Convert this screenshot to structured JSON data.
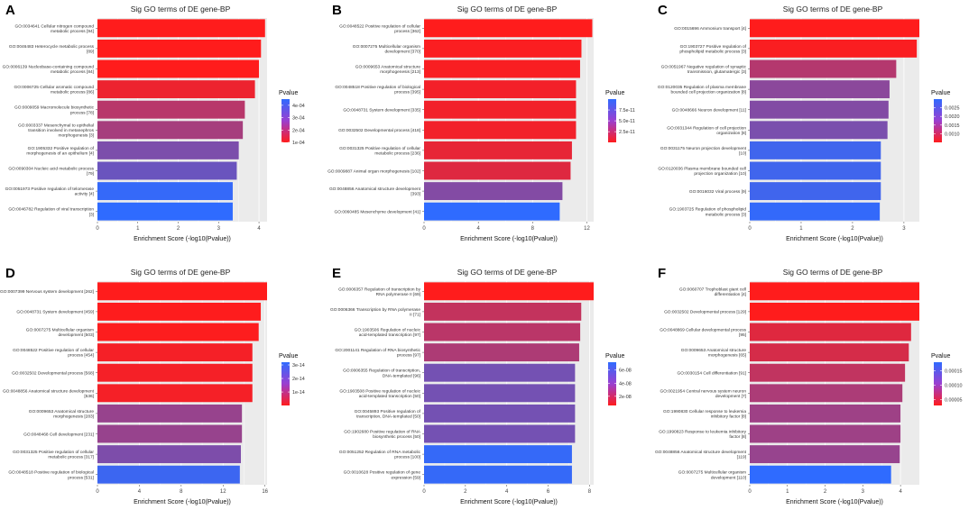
{
  "figure_title": "Sig GO terms of DE gene-BP panels A-F",
  "chart_data": [
    {
      "panel": "A",
      "type": "bar",
      "orientation": "horizontal",
      "title": "Sig GO terms of DE gene-BP",
      "xlabel": "Enrichment Score (-log10(Pvalue))",
      "xlim": [
        0,
        4.2
      ],
      "xticks": [
        0,
        1,
        2,
        3,
        4
      ],
      "categories": [
        "GO:0034641 Cellular nitrogen compound metabolic process [94]",
        "GO:0046483 Heterocycle metabolic process [89]",
        "GO:0006139 Nucleobase-containing compound metabolic process [84]",
        "GO:0006725 Cellular aromatic compound metabolic process [86]",
        "GO:0009059 Macromolecule biosynthetic process [78]",
        "GO:0003337 Mesenchymal to epithelial transition involved in metanephros morphogenesis [3]",
        "GO:1905332 Positive regulation of morphogenesis of an epithelium [4]",
        "GO:0090304 Nucleic acid metabolic process [79]",
        "GO:0051973 Positive regulation of telomerase activity [4]",
        "GO:0046782 Regulation of viral transcription [3]"
      ],
      "values": [
        4.15,
        4.05,
        4.0,
        3.9,
        3.65,
        3.6,
        3.5,
        3.45,
        3.35,
        3.35
      ],
      "pvalues": [
        7e-05,
        9e-05,
        0.0001,
        0.00013,
        0.00022,
        0.00025,
        0.00032,
        0.00035,
        0.00044,
        0.00045
      ],
      "legend": {
        "title": "Pvalue",
        "range": [
          0.0001,
          0.00045
        ],
        "ticks": [
          "4e-04",
          "3e-04",
          "2e-04",
          "1e-04"
        ],
        "tick_values": [
          0.0004,
          0.0003,
          0.0002,
          0.0001
        ]
      }
    },
    {
      "panel": "B",
      "type": "bar",
      "orientation": "horizontal",
      "title": "Sig GO terms of DE gene-BP",
      "xlabel": "Enrichment Score (-log10(Pvalue))",
      "xlim": [
        0,
        12.5
      ],
      "xticks": [
        0,
        4,
        8,
        12
      ],
      "categories": [
        "GO:0048522 Positive regulation of cellular process [362]",
        "GO:0007275 Multicellular organism development [370]",
        "GO:0009653 Anatomical structure morphogenesis [213]",
        "GO:0048518 Positive regulation of biological process [395]",
        "GO:0048731 System development [335]",
        "GO:0032502 Developmental process [418]",
        "GO:0031325 Positive regulation of cellular metabolic process [236]",
        "GO:0009887 Animal organ morphogenesis [102]",
        "GO:0048856 Anatomical structure development [393]",
        "GO:0060485 Mesenchyme development [41]"
      ],
      "values": [
        12.4,
        11.6,
        11.5,
        11.2,
        11.2,
        11.2,
        10.9,
        10.8,
        10.2,
        10.0
      ],
      "pvalues": [
        4e-13,
        2.5e-12,
        3.2e-12,
        6e-12,
        6.5e-12,
        6.5e-12,
        1.2e-11,
        1.6e-11,
        6e-11,
        1e-10
      ],
      "legend": {
        "title": "Pvalue",
        "range": [
          4e-13,
          1e-10
        ],
        "ticks": [
          "7.5e-11",
          "5.0e-11",
          "2.5e-11"
        ],
        "tick_values": [
          7.5e-11,
          5e-11,
          2.5e-11
        ]
      }
    },
    {
      "panel": "C",
      "type": "bar",
      "orientation": "horizontal",
      "title": "Sig GO terms of DE gene-BP",
      "xlabel": "Enrichment Score (-log10(Pvalue))",
      "xlim": [
        0,
        3.3
      ],
      "xticks": [
        0,
        1,
        2,
        3
      ],
      "categories": [
        "GO:0015696 Ammonium transport [4]",
        "GO:1903727 Positive regulation of phospholipid metabolic process [3]",
        "GO:0051967 Negative regulation of synaptic transmission, glutamatergic [3]",
        "GO:0120035 Regulation of plasma membrane bounded cell projection organization [8]",
        "GO:0048666 Neuron development [11]",
        "GO:0031344 Regulation of cell projection organization [8]",
        "GO:0031175 Neuron projection development [10]",
        "GO:0120036 Plasma membrane bounded cell projection organization [10]",
        "GO:0016032 Viral process [9]",
        "GO:1903725 Regulation of phospholipid metabolic process [3]"
      ],
      "values": [
        3.3,
        3.25,
        2.85,
        2.72,
        2.7,
        2.68,
        2.55,
        2.55,
        2.55,
        2.53
      ],
      "pvalues": [
        0.0005,
        0.00056,
        0.0014,
        0.0019,
        0.002,
        0.0021,
        0.0028,
        0.0028,
        0.0028,
        0.00295
      ],
      "legend": {
        "title": "Pvalue",
        "range": [
          0.0005,
          0.003
        ],
        "ticks": [
          "0.0025",
          "0.0020",
          "0.0015",
          "0.0010"
        ],
        "tick_values": [
          0.0025,
          0.002,
          0.0015,
          0.001
        ]
      }
    },
    {
      "panel": "D",
      "type": "bar",
      "orientation": "horizontal",
      "title": "Sig GO terms of DE gene-BP",
      "xlabel": "Enrichment Score (-log10(Pvalue))",
      "xlim": [
        0,
        16.2
      ],
      "xticks": [
        0,
        4,
        8,
        12,
        16
      ],
      "categories": [
        "GO:0007399 Nervous system development [262]",
        "GO:0048731 System development [459]",
        "GO:0007275 Multicellular organism development [503]",
        "GO:0048522 Positive regulation of cellular process [454]",
        "GO:0032502 Developmental process [568]",
        "GO:0048856 Anatomical structure development [536]",
        "GO:0009653 Anatomical structure morphogenesis [283]",
        "GO:0048468 Cell development [231]",
        "GO:0031325 Positive regulation of cellular metabolic process [317]",
        "GO:0048518 Positive regulation of biological process [531]"
      ],
      "values": [
        16.2,
        15.6,
        15.4,
        14.8,
        14.8,
        14.8,
        13.8,
        13.8,
        13.7,
        13.6
      ],
      "pvalues": [
        6e-17,
        2.5e-16,
        4e-16,
        1.6e-15,
        1.6e-15,
        1.6e-15,
        1.6e-14,
        1.6e-14,
        2e-14,
        3e-14
      ],
      "legend": {
        "title": "Pvalue",
        "range": [
          6e-17,
          3.2e-14
        ],
        "ticks": [
          "3e-14",
          "2e-14",
          "1e-14"
        ],
        "tick_values": [
          3e-14,
          2e-14,
          1e-14
        ]
      }
    },
    {
      "panel": "E",
      "type": "bar",
      "orientation": "horizontal",
      "title": "Sig GO terms of DE gene-BP",
      "xlabel": "Enrichment Score (-log10(Pvalue))",
      "xlim": [
        0,
        8.2
      ],
      "xticks": [
        0,
        2,
        4,
        6,
        8
      ],
      "categories": [
        "GO:0006357 Regulation of transcription by RNA polymerase II [69]",
        "GO:0006366 Transcription by RNA polymerase II [71]",
        "GO:1903506 Regulation of nucleic acid-templated transcription [97]",
        "GO:2001141 Regulation of RNA biosynthetic process [97]",
        "GO:0006355 Regulation of transcription, DNA-templated [96]",
        "GO:1903508 Positive regulation of nucleic acid-templated transcription [50]",
        "GO:0045893 Positive regulation of transcription, DNA-templated [50]",
        "GO:1902680 Positive regulation of RNA biosynthetic process [50]",
        "GO:0051252 Regulation of RNA metabolic process [100]",
        "GO:0010628 Positive regulation of gene expression [59]"
      ],
      "values": [
        8.2,
        7.6,
        7.55,
        7.5,
        7.3,
        7.3,
        7.3,
        7.3,
        7.15,
        7.15
      ],
      "pvalues": [
        6e-09,
        2.5e-08,
        2.8e-08,
        3.2e-08,
        5e-08,
        5e-08,
        5e-08,
        5e-08,
        7e-08,
        7e-08
      ],
      "legend": {
        "title": "Pvalue",
        "range": [
          6e-09,
          7.2e-08
        ],
        "ticks": [
          "6e-08",
          "4e-08",
          "2e-08"
        ],
        "tick_values": [
          6e-08,
          4e-08,
          2e-08
        ]
      }
    },
    {
      "panel": "F",
      "type": "bar",
      "orientation": "horizontal",
      "title": "Sig GO terms of DE gene-BP",
      "xlabel": "Enrichment Score (-log10(Pvalue))",
      "xlim": [
        0,
        4.5
      ],
      "xticks": [
        0,
        1,
        2,
        3,
        4
      ],
      "categories": [
        "GO:0060707 Trophoblast giant cell differentiation [4]",
        "GO:0032502 Developmental process [129]",
        "GO:0048869 Cellular developmental process [95]",
        "GO:0009653 Anatomical structure morphogenesis [65]",
        "GO:0030154 Cell differentiation [91]",
        "GO:0021954 Central nervous system neuron development [7]",
        "GO:1990830 Cellular response to leukemia inhibitory factor [8]",
        "GO:1990823 Response to leukemia inhibitory factor [8]",
        "GO:0048856 Anatomical structure development [119]",
        "GO:0007275 Multicellular organism development [110]"
      ],
      "values": [
        4.5,
        4.5,
        4.28,
        4.22,
        4.12,
        4.05,
        4.0,
        4.0,
        3.98,
        3.75
      ],
      "pvalues": [
        3e-05,
        3e-05,
        5.3e-05,
        6e-05,
        7.5e-05,
        9e-05,
        0.0001,
        0.0001,
        0.000105,
        0.00018
      ],
      "legend": {
        "title": "Pvalue",
        "range": [
          3e-05,
          0.00018
        ],
        "ticks": [
          "0.00015",
          "0.00010",
          "0.00005"
        ],
        "tick_values": [
          0.00015,
          0.0001,
          5e-05
        ]
      }
    }
  ],
  "colors": {
    "low_p": "#ff1c1c",
    "high_p": "#2f6bff",
    "panel_bg": "#ebebeb",
    "grid": "#ffffff"
  }
}
